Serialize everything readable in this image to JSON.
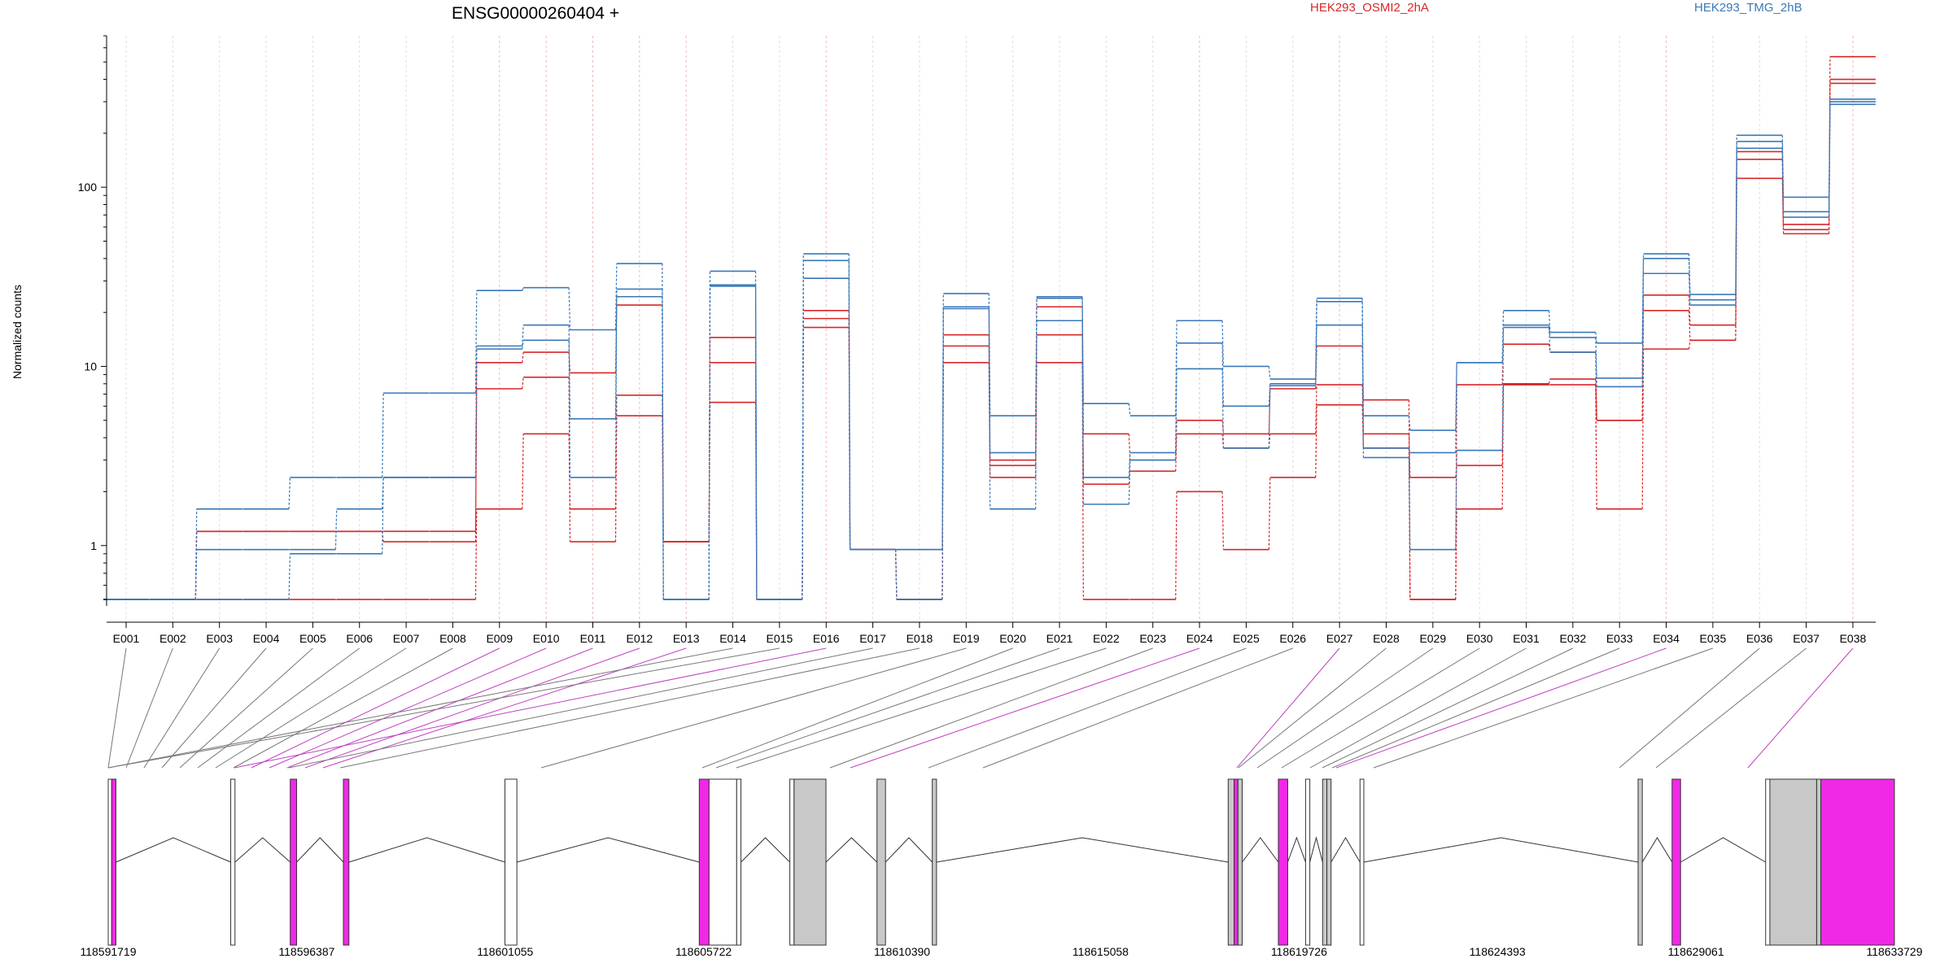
{
  "figure": {
    "title": "ENSG00000260404 +",
    "legend": [
      {
        "label": "HEK293_OSMI2_2hA",
        "color": "#d62728"
      },
      {
        "label": "HEK293_TMG_2hB",
        "color": "#3a78b8"
      }
    ]
  },
  "chart_data": {
    "type": "line",
    "title": "ENSG00000260404 +",
    "ylabel": "Normalized counts",
    "xlabel": "",
    "yscale": "log",
    "ylim": [
      0.48,
      700
    ],
    "yticks": [
      1,
      10,
      100
    ],
    "ytick_labels": [
      "1",
      "10",
      "100"
    ],
    "grid": "vertical dashed lines at each exon (red for highlighted exons, blue otherwise)",
    "categories": [
      "E001",
      "E002",
      "E003",
      "E004",
      "E005",
      "E006",
      "E007",
      "E008",
      "E009",
      "E010",
      "E011",
      "E012",
      "E013",
      "E014",
      "E015",
      "E016",
      "E017",
      "E018",
      "E019",
      "E020",
      "E021",
      "E022",
      "E023",
      "E024",
      "E025",
      "E026",
      "E027",
      "E028",
      "E029",
      "E030",
      "E031",
      "E032",
      "E033",
      "E034",
      "E035",
      "E036",
      "E037",
      "E038"
    ],
    "highlighted_exons": [
      "E009",
      "E010",
      "E011",
      "E012",
      "E013",
      "E016",
      "E024",
      "E027",
      "E034",
      "E038"
    ],
    "series": [
      {
        "group": "HEK293_OSMI2_2hA",
        "color": "#d62728",
        "values": [
          0.5,
          0.5,
          1.2,
          1.2,
          1.2,
          1.2,
          1.2,
          1.2,
          10.5,
          12,
          9.2,
          22,
          1.05,
          14.5,
          0.5,
          20.5,
          0.95,
          0.5,
          15,
          3,
          21.5,
          4.2,
          3,
          5,
          4.2,
          7.5,
          13,
          6.5,
          0.5,
          7.9,
          13.3,
          12,
          5,
          25,
          17,
          158,
          62,
          535
        ]
      },
      {
        "group": "HEK293_OSMI2_2hA",
        "color": "#d62728",
        "values": [
          0.5,
          0.5,
          1.2,
          1.2,
          1.2,
          1.2,
          1.05,
          1.05,
          7.5,
          8.7,
          1.05,
          6.9,
          1.05,
          10.5,
          0.5,
          18.5,
          0.95,
          0.5,
          13,
          2.8,
          15,
          2.2,
          2.6,
          4.2,
          3.5,
          4.2,
          7.9,
          4.2,
          2.4,
          2.8,
          8,
          8.5,
          5,
          20.5,
          14,
          143,
          58,
          400
        ]
      },
      {
        "group": "HEK293_OSMI2_2hA",
        "color": "#d62728",
        "values": [
          0.5,
          0.5,
          0.5,
          0.5,
          0.5,
          0.5,
          0.5,
          0.5,
          1.6,
          4.2,
          1.6,
          5.3,
          1.05,
          6.3,
          0.5,
          16.5,
          0.95,
          0.5,
          10.5,
          2.4,
          10.5,
          0.5,
          0.5,
          2,
          0.95,
          2.4,
          6.1,
          3.5,
          0.5,
          1.6,
          7.9,
          7.9,
          1.6,
          12.5,
          14,
          112,
          55,
          380
        ]
      },
      {
        "group": "HEK293_TMG_2hB",
        "color": "#3a78b8",
        "values": [
          0.5,
          0.5,
          1.6,
          1.6,
          2.4,
          2.4,
          7.1,
          7.1,
          26.5,
          27.5,
          16,
          37.5,
          0.5,
          34,
          0.5,
          42.5,
          0.95,
          0.95,
          25.5,
          5.3,
          24.5,
          6.2,
          5.3,
          18,
          10,
          8.5,
          24,
          5.3,
          4.4,
          10.5,
          20.5,
          15.5,
          13.5,
          42.5,
          25.2,
          195,
          88,
          310
        ]
      },
      {
        "group": "HEK293_TMG_2hB",
        "color": "#3a78b8",
        "values": [
          0.5,
          0.5,
          0.95,
          0.95,
          0.95,
          1.6,
          2.4,
          2.4,
          13,
          17,
          5.1,
          27,
          0.5,
          28.5,
          0.5,
          39,
          0.95,
          0.95,
          21.5,
          3.3,
          18,
          2.4,
          3.3,
          13.5,
          6,
          8,
          23,
          3.5,
          3.3,
          10.5,
          17,
          14.5,
          8.6,
          40,
          23.5,
          180,
          73,
          300
        ]
      },
      {
        "group": "HEK293_TMG_2hB",
        "color": "#3a78b8",
        "values": [
          0.5,
          0.5,
          0.5,
          0.5,
          0.9,
          0.9,
          2.4,
          2.4,
          12.5,
          14,
          2.4,
          24.5,
          0.5,
          28,
          0.5,
          31,
          0.95,
          0.5,
          21,
          1.6,
          24,
          1.7,
          3,
          9.7,
          3.5,
          7.8,
          17,
          3.1,
          0.95,
          3.4,
          16.5,
          12,
          7.7,
          33,
          22,
          165,
          68,
          290
        ]
      }
    ],
    "genomic_axis": {
      "ticks": [
        118591719,
        118596387,
        118601055,
        118605722,
        118610390,
        118615058,
        118619726,
        118624393,
        118629061,
        118633729
      ],
      "tick_labels": [
        "118591719",
        "118596387",
        "118601055",
        "118605722",
        "118610390",
        "118615058",
        "118619726",
        "118624393",
        "118629061",
        "118633729"
      ]
    },
    "gene_model_exons": [
      {
        "start": 118591719,
        "end": 118591800,
        "highlight": false
      },
      {
        "start": 118591800,
        "end": 118591900,
        "highlight": true
      },
      {
        "start": 118594600,
        "end": 118594700,
        "highlight": false
      },
      {
        "start": 118596000,
        "end": 118596150,
        "highlight": true
      },
      {
        "start": 118597250,
        "end": 118597380,
        "highlight": true
      },
      {
        "start": 118601050,
        "end": 118601330,
        "highlight": false
      },
      {
        "start": 118605620,
        "end": 118605850,
        "highlight": true
      },
      {
        "start": 118605850,
        "end": 118606500,
        "highlight": false
      },
      {
        "start": 118606500,
        "end": 118606600,
        "highlight": false
      },
      {
        "start": 118607750,
        "end": 118607850,
        "highlight": false
      },
      {
        "start": 118607850,
        "end": 118608600,
        "highlight": false,
        "fill": "#c8c8c8"
      },
      {
        "start": 118609800,
        "end": 118610000,
        "highlight": false,
        "fill": "#c8c8c8"
      },
      {
        "start": 118611100,
        "end": 118611200,
        "highlight": false,
        "fill": "#c8c8c8"
      },
      {
        "start": 118618060,
        "end": 118618200,
        "highlight": false,
        "fill": "#c8c8c8"
      },
      {
        "start": 118618200,
        "end": 118618290,
        "highlight": true
      },
      {
        "start": 118618290,
        "end": 118618390,
        "highlight": false,
        "fill": "#c8c8c8"
      },
      {
        "start": 118619240,
        "end": 118619460,
        "highlight": true
      },
      {
        "start": 118619880,
        "end": 118619980,
        "highlight": false
      },
      {
        "start": 118620280,
        "end": 118620380,
        "highlight": false,
        "fill": "#c8c8c8"
      },
      {
        "start": 118620380,
        "end": 118620480,
        "highlight": false,
        "fill": "#c8c8c8"
      },
      {
        "start": 118621160,
        "end": 118621250,
        "highlight": false
      },
      {
        "start": 118627700,
        "end": 118627800,
        "highlight": false,
        "fill": "#c8c8c8"
      },
      {
        "start": 118628500,
        "end": 118628700,
        "highlight": true
      },
      {
        "start": 118630700,
        "end": 118630800,
        "highlight": false
      },
      {
        "start": 118630800,
        "end": 118631900,
        "highlight": false,
        "fill": "#c8c8c8"
      },
      {
        "start": 118631900,
        "end": 118632000,
        "highlight": false,
        "fill": "#c8c8c8"
      },
      {
        "start": 118632000,
        "end": 118633729,
        "highlight": true
      }
    ]
  }
}
